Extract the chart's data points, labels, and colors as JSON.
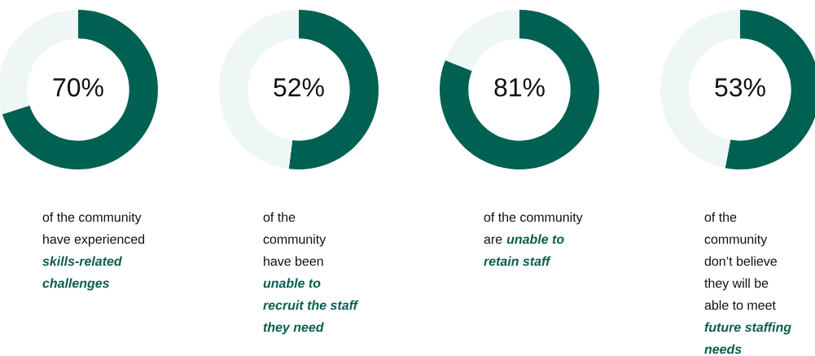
{
  "chart_data": [
    {
      "type": "donut",
      "categories": [
        null,
        null
      ],
      "values": [
        70,
        30
      ],
      "colors": [
        "#006152",
        "#eef7f5"
      ],
      "value_labels": [
        "70%",
        null
      ],
      "annotations": [
        "of the community\nhave experienced\n",
        "skills-related\nchallenges"
      ]
    },
    {
      "type": "donut",
      "categories": [
        null,
        null
      ],
      "values": [
        52,
        48
      ],
      "colors": [
        "#006152",
        "#eef7f5"
      ],
      "value_labels": [
        "52%",
        null
      ],
      "annotations": [
        "of the\ncommunity\nhave been\n",
        "unable to\nrecruit the staff\nthey need"
      ]
    },
    {
      "type": "donut",
      "categories": [
        null,
        null
      ],
      "values": [
        81,
        19
      ],
      "colors": [
        "#006152",
        "#eef7f5"
      ],
      "value_labels": [
        "81%",
        null
      ],
      "annotations": [
        "of the community\nare",
        "unable to\nretain staff"
      ]
    },
    {
      "type": "donut",
      "categories": [
        null,
        null
      ],
      "values": [
        53,
        47
      ],
      "colors": [
        "#006152",
        "#eef7f5"
      ],
      "value_labels": [
        "53%",
        null
      ],
      "annotations": [
        "of the\ncommunity\ndon’t believe\nthey will be\nable to meet\n",
        "future staffing\nneeds"
      ]
    }
  ]
}
